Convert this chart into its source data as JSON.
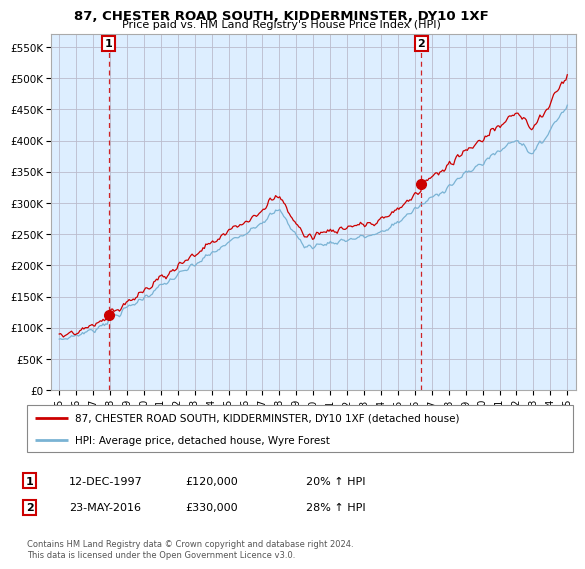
{
  "title": "87, CHESTER ROAD SOUTH, KIDDERMINSTER, DY10 1XF",
  "subtitle": "Price paid vs. HM Land Registry's House Price Index (HPI)",
  "legend_line1": "87, CHESTER ROAD SOUTH, KIDDERMINSTER, DY10 1XF (detached house)",
  "legend_line2": "HPI: Average price, detached house, Wyre Forest",
  "footnote": "Contains HM Land Registry data © Crown copyright and database right 2024.\nThis data is licensed under the Open Government Licence v3.0.",
  "annotation1_label": "1",
  "annotation1_date": "12-DEC-1997",
  "annotation1_price": "£120,000",
  "annotation1_hpi": "20% ↑ HPI",
  "annotation2_label": "2",
  "annotation2_date": "23-MAY-2016",
  "annotation2_price": "£330,000",
  "annotation2_hpi": "28% ↑ HPI",
  "sale1_year": 1997.92,
  "sale1_price": 120000,
  "sale2_year": 2016.38,
  "sale2_price": 330000,
  "hpi_color": "#7ab3d4",
  "price_color": "#cc0000",
  "dashed_color": "#cc0000",
  "chart_bg": "#ddeeff",
  "ylim_min": 0,
  "ylim_max": 570000,
  "yticks": [
    0,
    50000,
    100000,
    150000,
    200000,
    250000,
    300000,
    350000,
    400000,
    450000,
    500000,
    550000
  ],
  "xlim_min": 1994.5,
  "xlim_max": 2025.5,
  "xtick_years": [
    1995,
    1996,
    1997,
    1998,
    1999,
    2000,
    2001,
    2002,
    2003,
    2004,
    2005,
    2006,
    2007,
    2008,
    2009,
    2010,
    2011,
    2012,
    2013,
    2014,
    2015,
    2016,
    2017,
    2018,
    2019,
    2020,
    2021,
    2022,
    2023,
    2024,
    2025
  ],
  "background_color": "#ffffff",
  "grid_color": "#bbbbcc"
}
